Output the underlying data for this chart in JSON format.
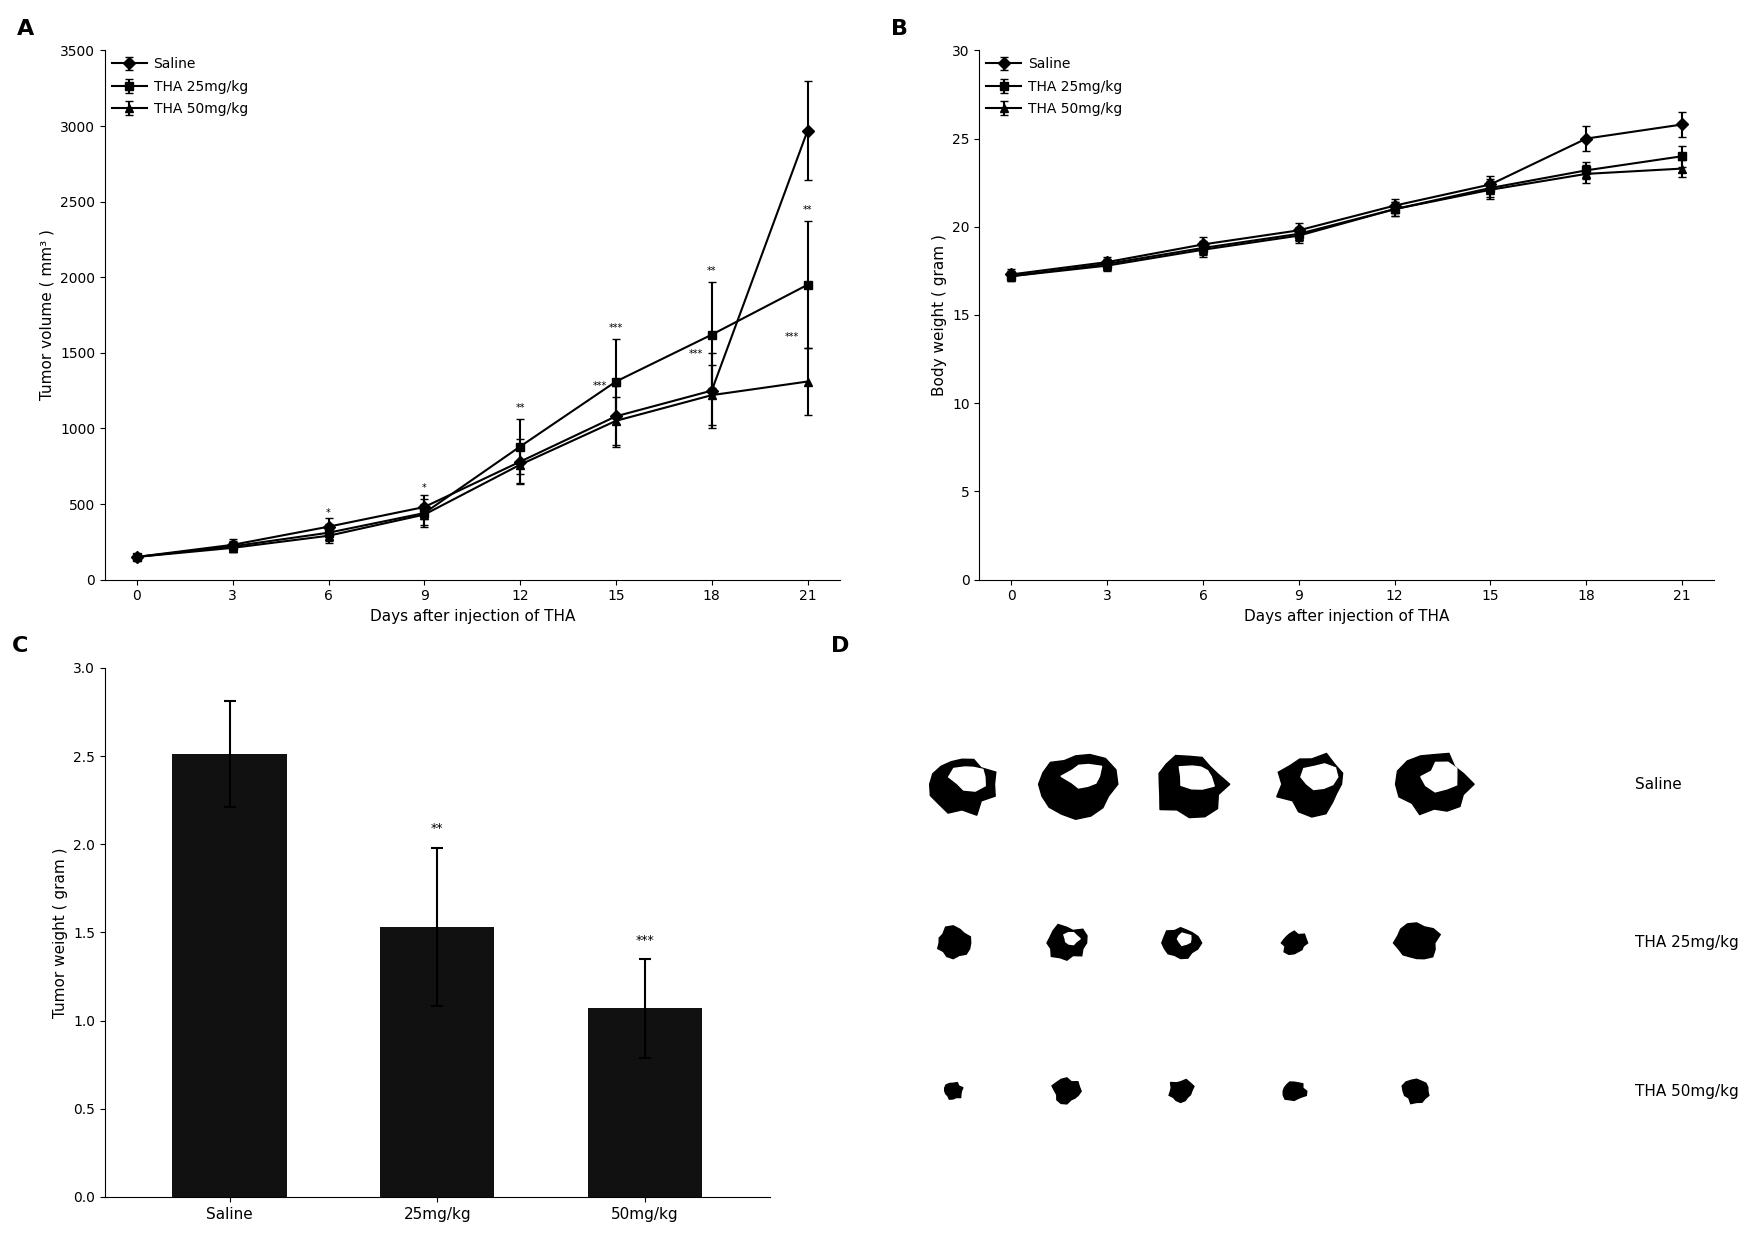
{
  "panel_A": {
    "days": [
      0,
      3,
      6,
      9,
      12,
      15,
      18,
      21
    ],
    "saline_mean": [
      150,
      230,
      350,
      480,
      780,
      1080,
      1250,
      2970
    ],
    "saline_err": [
      20,
      40,
      60,
      80,
      150,
      200,
      250,
      330
    ],
    "tha25_mean": [
      150,
      220,
      310,
      440,
      880,
      1310,
      1620,
      1950
    ],
    "tha25_err": [
      20,
      35,
      55,
      90,
      180,
      280,
      350,
      420
    ],
    "tha50_mean": [
      150,
      210,
      290,
      430,
      760,
      1050,
      1220,
      1310
    ],
    "tha50_err": [
      20,
      30,
      50,
      70,
      120,
      160,
      200,
      220
    ],
    "xlabel": "Days after injection of THA",
    "ylabel": "Tumor volume ( mm³ )",
    "ylim": [
      0,
      3500
    ],
    "yticks": [
      0,
      500,
      1000,
      1500,
      2000,
      2500,
      3000,
      3500
    ],
    "xticks": [
      0,
      3,
      6,
      9,
      12,
      15,
      18,
      21
    ]
  },
  "panel_B": {
    "days": [
      0,
      3,
      6,
      9,
      12,
      15,
      18,
      21
    ],
    "saline_mean": [
      17.3,
      18.0,
      19.0,
      19.8,
      21.2,
      22.4,
      25.0,
      25.8
    ],
    "saline_err": [
      0.3,
      0.3,
      0.4,
      0.4,
      0.4,
      0.5,
      0.7,
      0.7
    ],
    "tha25_mean": [
      17.2,
      17.9,
      18.8,
      19.6,
      21.0,
      22.2,
      23.2,
      24.0
    ],
    "tha25_err": [
      0.3,
      0.3,
      0.4,
      0.4,
      0.4,
      0.5,
      0.5,
      0.6
    ],
    "tha50_mean": [
      17.2,
      17.8,
      18.7,
      19.5,
      21.0,
      22.1,
      23.0,
      23.3
    ],
    "tha50_err": [
      0.3,
      0.3,
      0.4,
      0.4,
      0.4,
      0.5,
      0.5,
      0.5
    ],
    "xlabel": "Days after injection of THA",
    "ylabel": "Body weight ( gram )",
    "ylim": [
      0,
      30
    ],
    "yticks": [
      0,
      5,
      10,
      15,
      20,
      25,
      30
    ],
    "xticks": [
      0,
      3,
      6,
      9,
      12,
      15,
      18,
      21
    ]
  },
  "panel_C": {
    "categories": [
      "Saline",
      "25mg/kg",
      "50mg/kg"
    ],
    "means": [
      2.51,
      1.53,
      1.07
    ],
    "errors": [
      0.3,
      0.45,
      0.28
    ],
    "ylabel": "Tumor weight ( gram )",
    "ylim": [
      0,
      3
    ],
    "yticks": [
      0,
      0.5,
      1.0,
      1.5,
      2.0,
      2.5,
      3.0
    ],
    "annot_25": "**",
    "annot_50": "***"
  },
  "legend_labels": [
    "Saline",
    "THA 25mg/kg",
    "THA 50mg/kg"
  ],
  "line_color": "#000000",
  "bar_color": "#111111",
  "marker_saline": "D",
  "marker_tha25": "s",
  "marker_tha50": "^",
  "panel_labels": [
    "A",
    "B",
    "C",
    "D"
  ],
  "panel_A_sig_25": {
    "days": [
      6,
      9,
      12,
      15,
      18,
      21
    ],
    "labels": [
      "*",
      "*",
      "**",
      "***",
      "**",
      "**"
    ]
  },
  "panel_A_sig_50": {
    "days": [
      15,
      18,
      21
    ],
    "labels": [
      "***",
      "***",
      "***"
    ]
  }
}
